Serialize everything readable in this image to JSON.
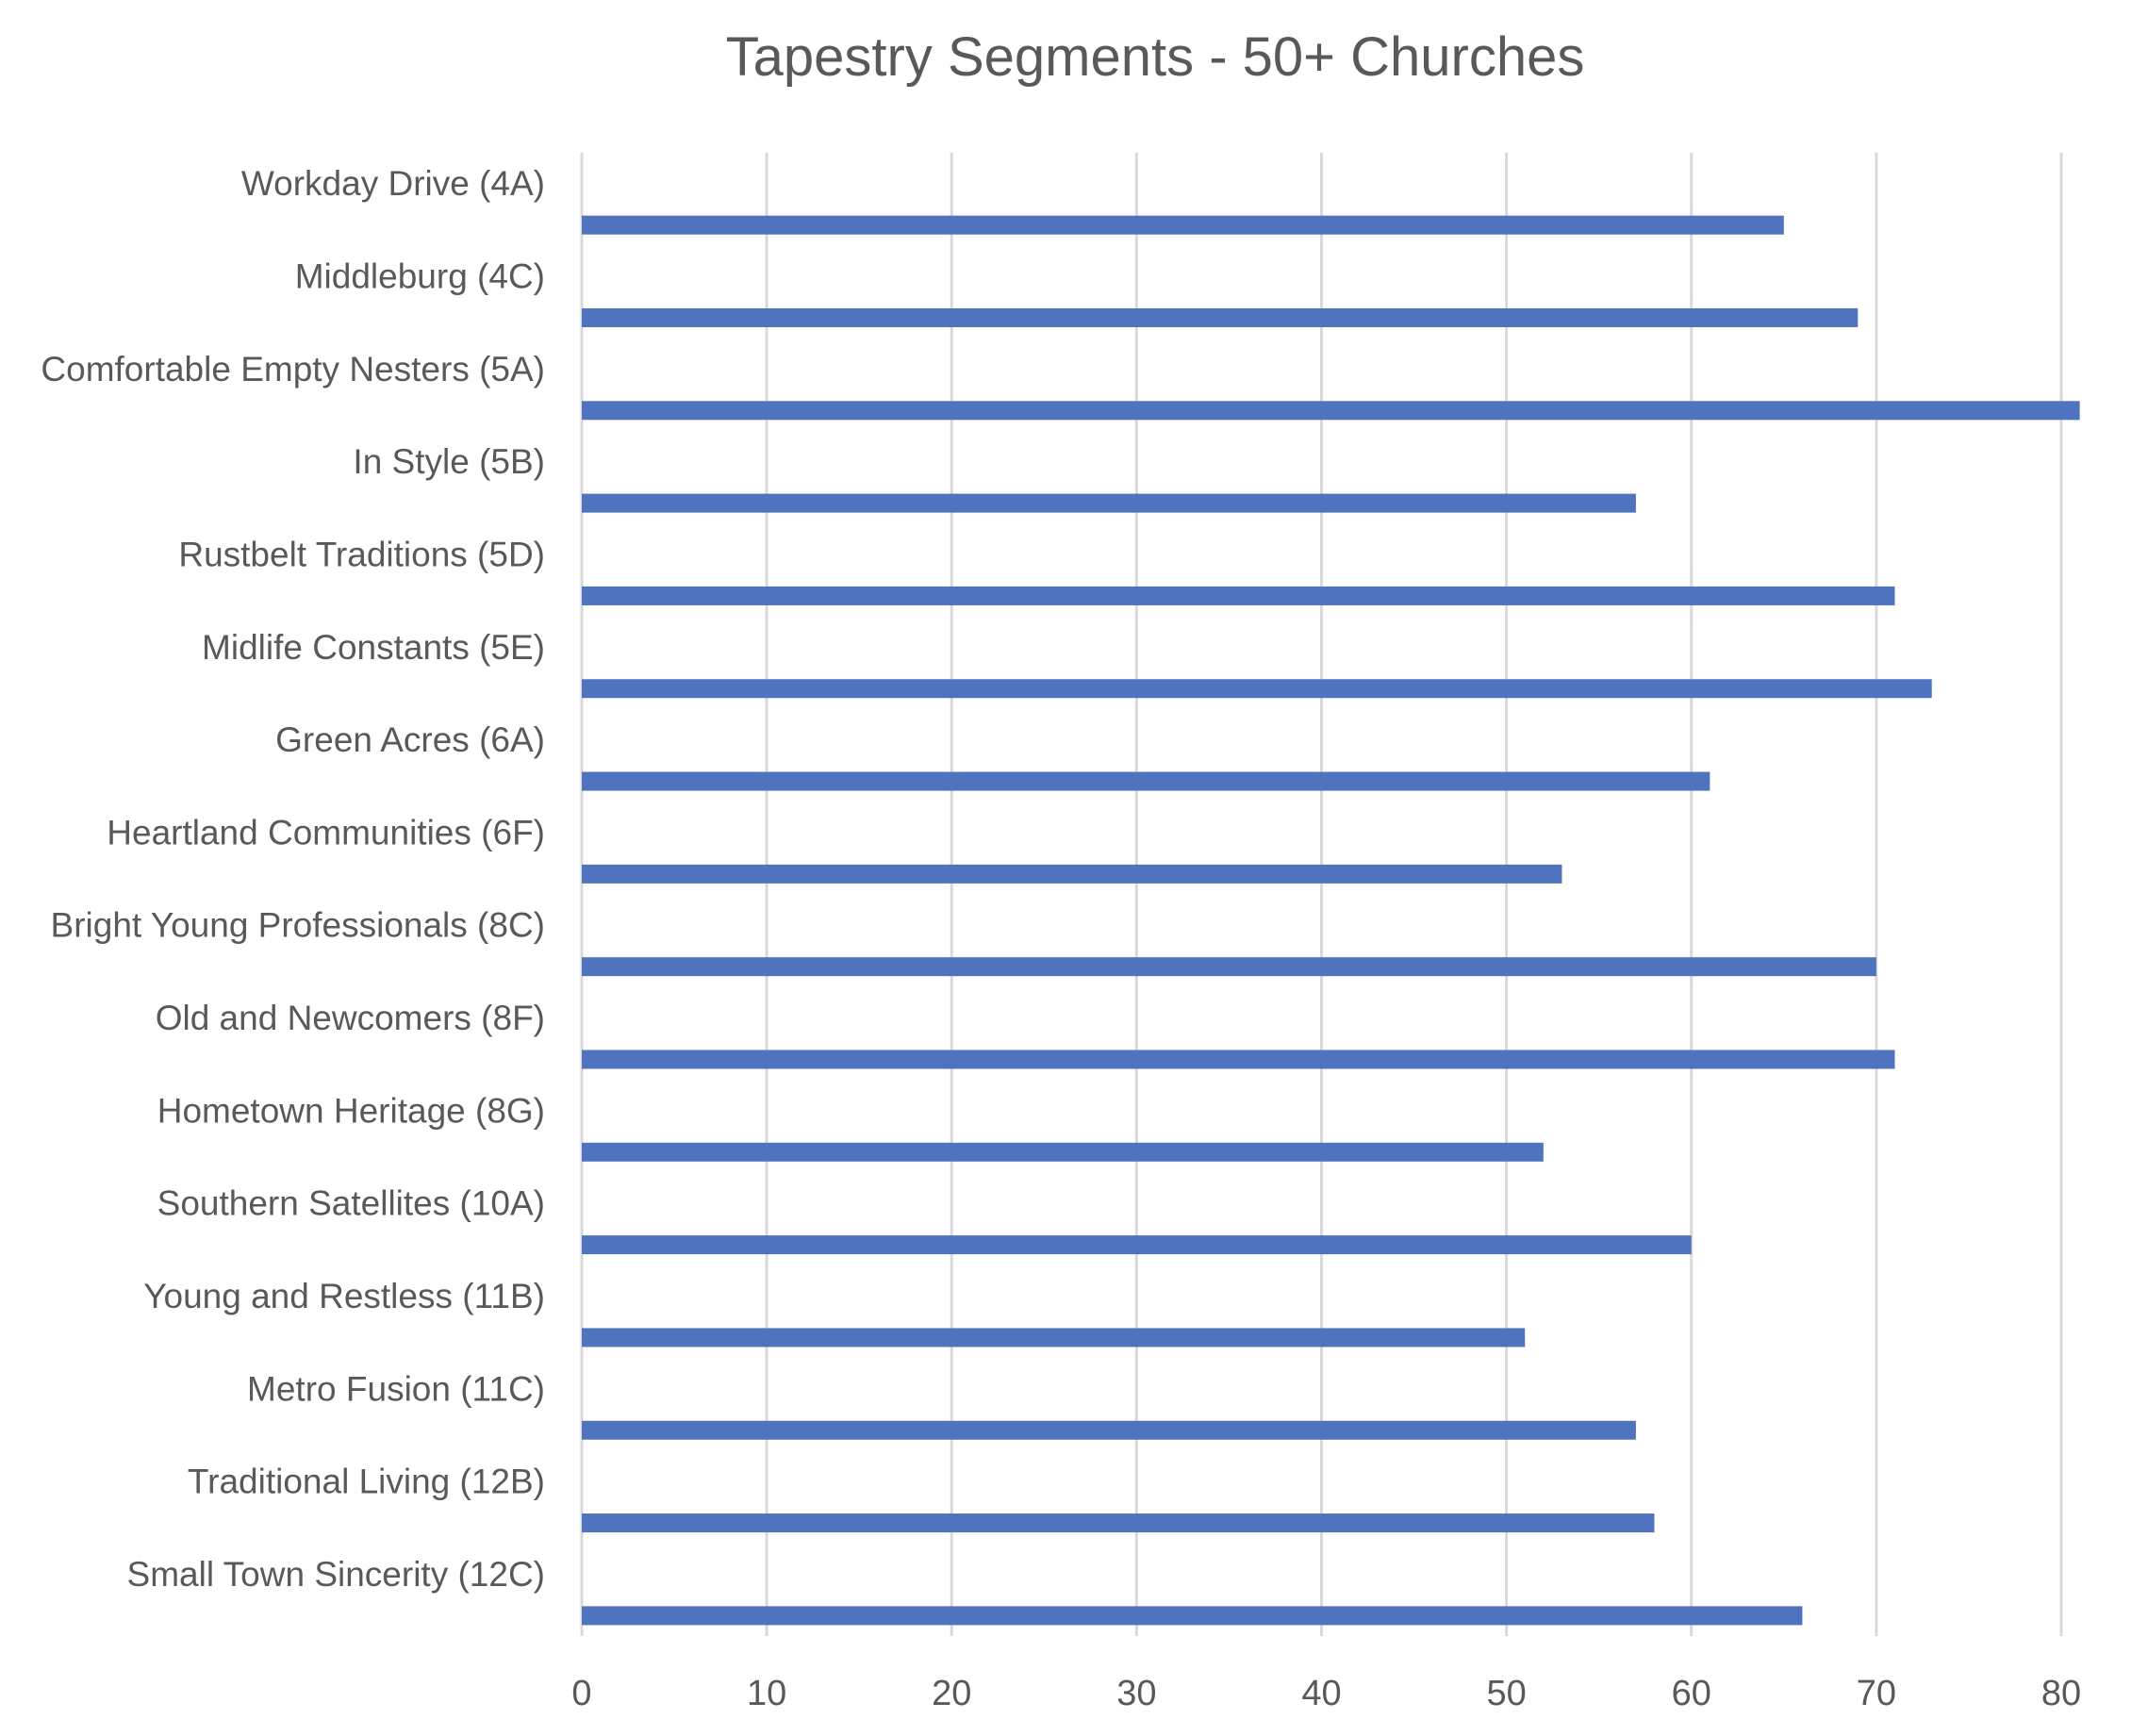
{
  "chart_data": {
    "type": "bar",
    "orientation": "horizontal",
    "title": "Tapestry Segments - 50+ Churches",
    "xlabel": "",
    "ylabel": "",
    "xlim": [
      0,
      80
    ],
    "ticks": [
      0,
      10,
      20,
      30,
      40,
      50,
      60,
      70,
      80
    ],
    "tick_labels": [
      "0",
      "10",
      "20",
      "30",
      "40",
      "50",
      "60",
      "70",
      "80"
    ],
    "grid": true,
    "legend": "none",
    "categories": [
      "Workday Drive (4A)",
      "Middleburg (4C)",
      "Comfortable Empty Nesters (5A)",
      "In Style (5B)",
      "Rustbelt Traditions (5D)",
      "Midlife Constants (5E)",
      "Green Acres (6A)",
      "Heartland Communities (6F)",
      "Bright Young Professionals (8C)",
      "Old and Newcomers (8F)",
      "Hometown Heritage (8G)",
      "Southern Satellites (10A)",
      "Young and Restless (11B)",
      "Metro Fusion (11C)",
      "Traditional Living (12B)",
      "Small Town Sincerity (12C)"
    ],
    "values": [
      65,
      69,
      81,
      57,
      71,
      73,
      61,
      53,
      70,
      71,
      52,
      60,
      51,
      57,
      58,
      66
    ],
    "colors": {
      "bar": "#4f73be",
      "grid": "#d9d9d9",
      "text": "#595959",
      "title": "#595959"
    }
  }
}
